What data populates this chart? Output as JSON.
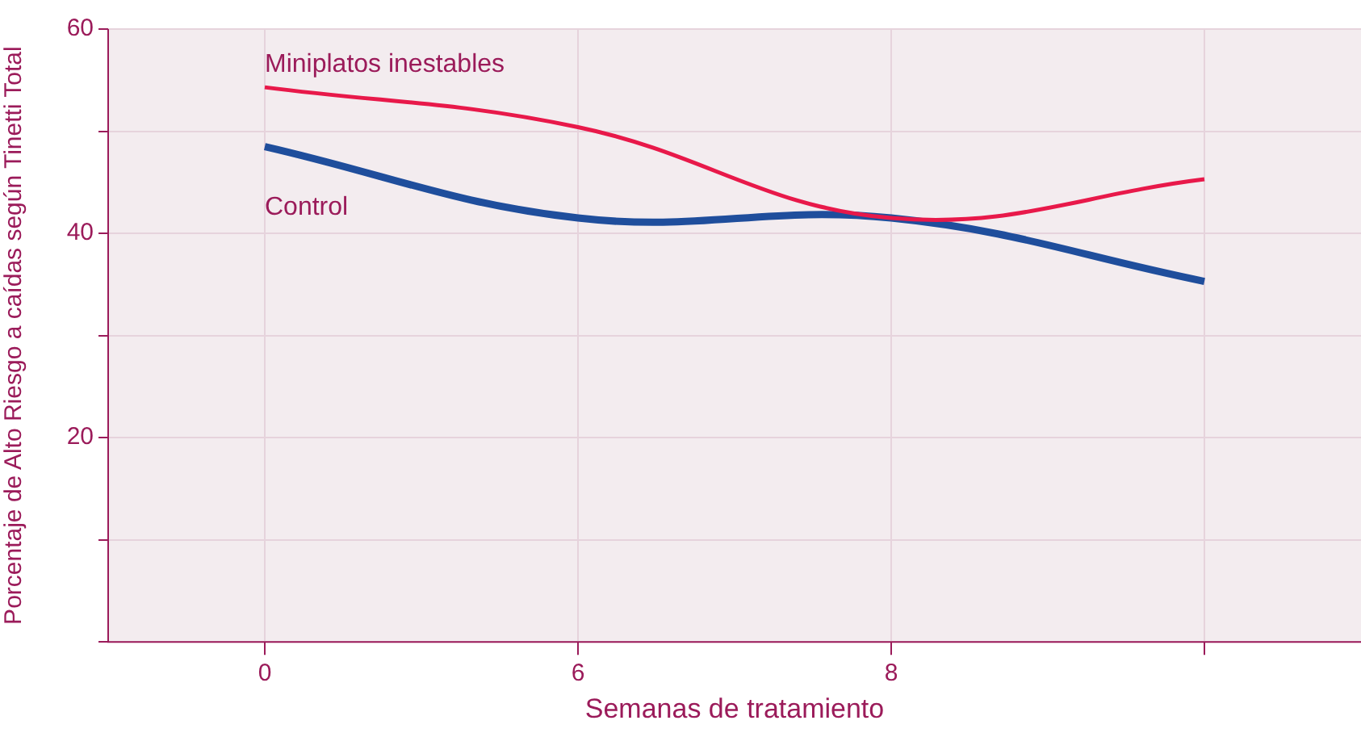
{
  "chart_data": {
    "type": "line",
    "xlabel": "Semanas de tratamiento",
    "ylabel": "Porcentaje de Alto Riesgo a caídas según Tinetti Total",
    "categories": [
      "0",
      "6",
      "8",
      null
    ],
    "series": [
      {
        "name": "Miniplatos inestables",
        "color": "#e8194a",
        "values": [
          54.3,
          50.4,
          41.5,
          45.3
        ]
      },
      {
        "name": "Control",
        "color": "#1f4e9c",
        "values": [
          48.5,
          41.5,
          41.5,
          35.3
        ]
      }
    ],
    "ylim": [
      0,
      60
    ],
    "yticks": [
      {
        "value": 0,
        "label": null
      },
      {
        "value": 10,
        "label": null
      },
      20,
      {
        "value": 30,
        "label": null
      },
      40,
      {
        "value": 50,
        "label": null
      },
      60
    ],
    "grid": true,
    "legend": false,
    "marker": "none",
    "line_style": "solid"
  }
}
